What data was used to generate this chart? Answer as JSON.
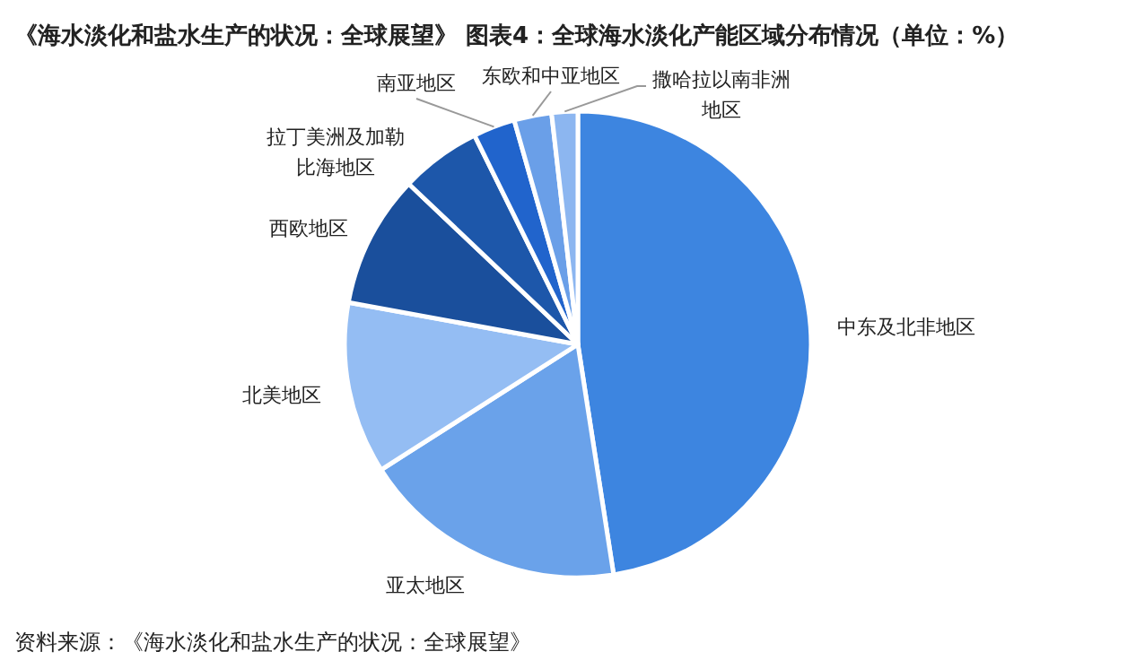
{
  "chart_data": {
    "type": "pie",
    "title": "《海水淡化和盐水生产的状况：全球展望》 图表4：全球海水淡化产能区域分布情况（单位：%）",
    "categories": [
      "中东及北非地区",
      "亚太地区",
      "北美地区",
      "西欧地区",
      "拉丁美洲及加勒比海地区",
      "南亚地区",
      "东欧和中亚地区",
      "撒哈拉以南非洲地区"
    ],
    "values": [
      47.5,
      18.4,
      11.9,
      9.2,
      5.6,
      2.9,
      2.6,
      1.8
    ],
    "colors": [
      "#3d85e0",
      "#6aa2ea",
      "#94bdf3",
      "#1a4f9c",
      "#1d57aa",
      "#2164cc",
      "#6a9fe8",
      "#8cb6f0"
    ],
    "annotations": [
      "资料来源：《海水淡化和盐水生产的状况：全球展望》"
    ]
  }
}
